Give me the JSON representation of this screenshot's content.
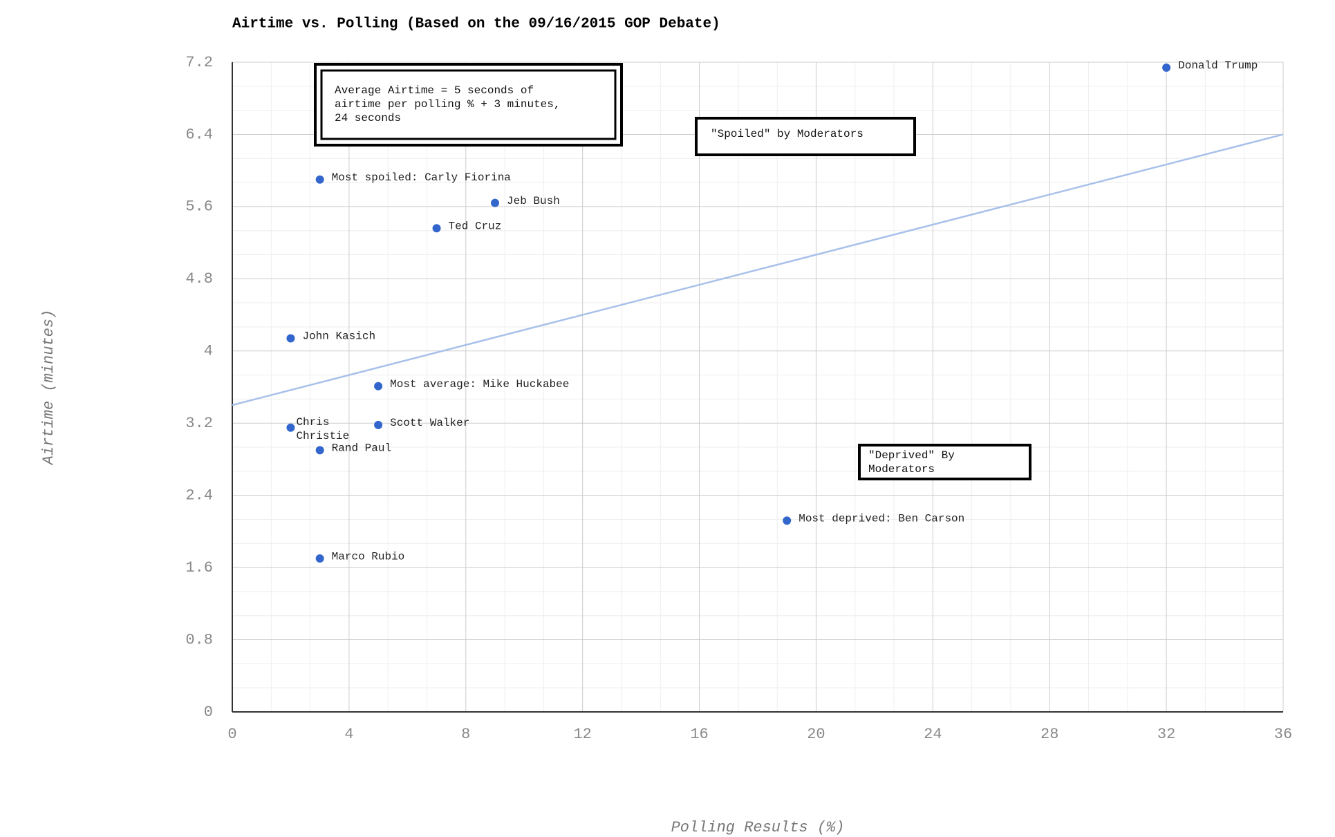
{
  "chart_data": {
    "type": "scatter",
    "title": "Airtime vs. Polling (Based on the 09/16/2015 GOP Debate)",
    "x_label": "Polling Results (%)",
    "y_label": "Airtime (minutes)",
    "series": [
      {
        "color": "#3366cc",
        "x": [
          32,
          3,
          9,
          7,
          2,
          5,
          2,
          5,
          3,
          3,
          19
        ],
        "values": [
          7.14,
          5.9,
          5.64,
          5.36,
          4.14,
          3.61,
          3.15,
          3.18,
          2.9,
          1.7,
          2.12
        ],
        "labels": [
          [
            "Donald Trump"
          ],
          [
            "Most spoiled: Carly Fiorina"
          ],
          [
            "Jeb Bush"
          ],
          [
            "Ted Cruz"
          ],
          [
            "John Kasich"
          ],
          [
            "Most average: Mike Huckabee"
          ],
          [
            "Chris",
            "Christie"
          ],
          [
            "Scott Walker"
          ],
          [
            "Rand Paul"
          ],
          [
            "Marco Rubio"
          ],
          [
            "Most deprived: Ben Carson"
          ]
        ]
      }
    ],
    "trendline": {
      "color": "#a8c0ea",
      "x": [
        0,
        36
      ],
      "values": [
        3.4,
        6.4
      ]
    },
    "annotations": [
      {
        "lines": [
          "Average Airtime = 5 seconds of",
          "airtime per polling % + 3 minutes,",
          "24 seconds"
        ]
      },
      {
        "lines": [
          "\"Spoiled\" by Moderators"
        ]
      },
      {
        "lines": [
          "\"Deprived\" By",
          "Moderators"
        ]
      }
    ],
    "xlim": [
      0,
      36
    ],
    "xticks": [
      0,
      4,
      8,
      12,
      16,
      20,
      24,
      28,
      32,
      36
    ],
    "ylim": [
      0,
      7.2
    ],
    "yticks": [
      0,
      0.8,
      1.6,
      2.4,
      3.2,
      4,
      4.8,
      5.6,
      6.4,
      7.2
    ],
    "grid": true
  }
}
